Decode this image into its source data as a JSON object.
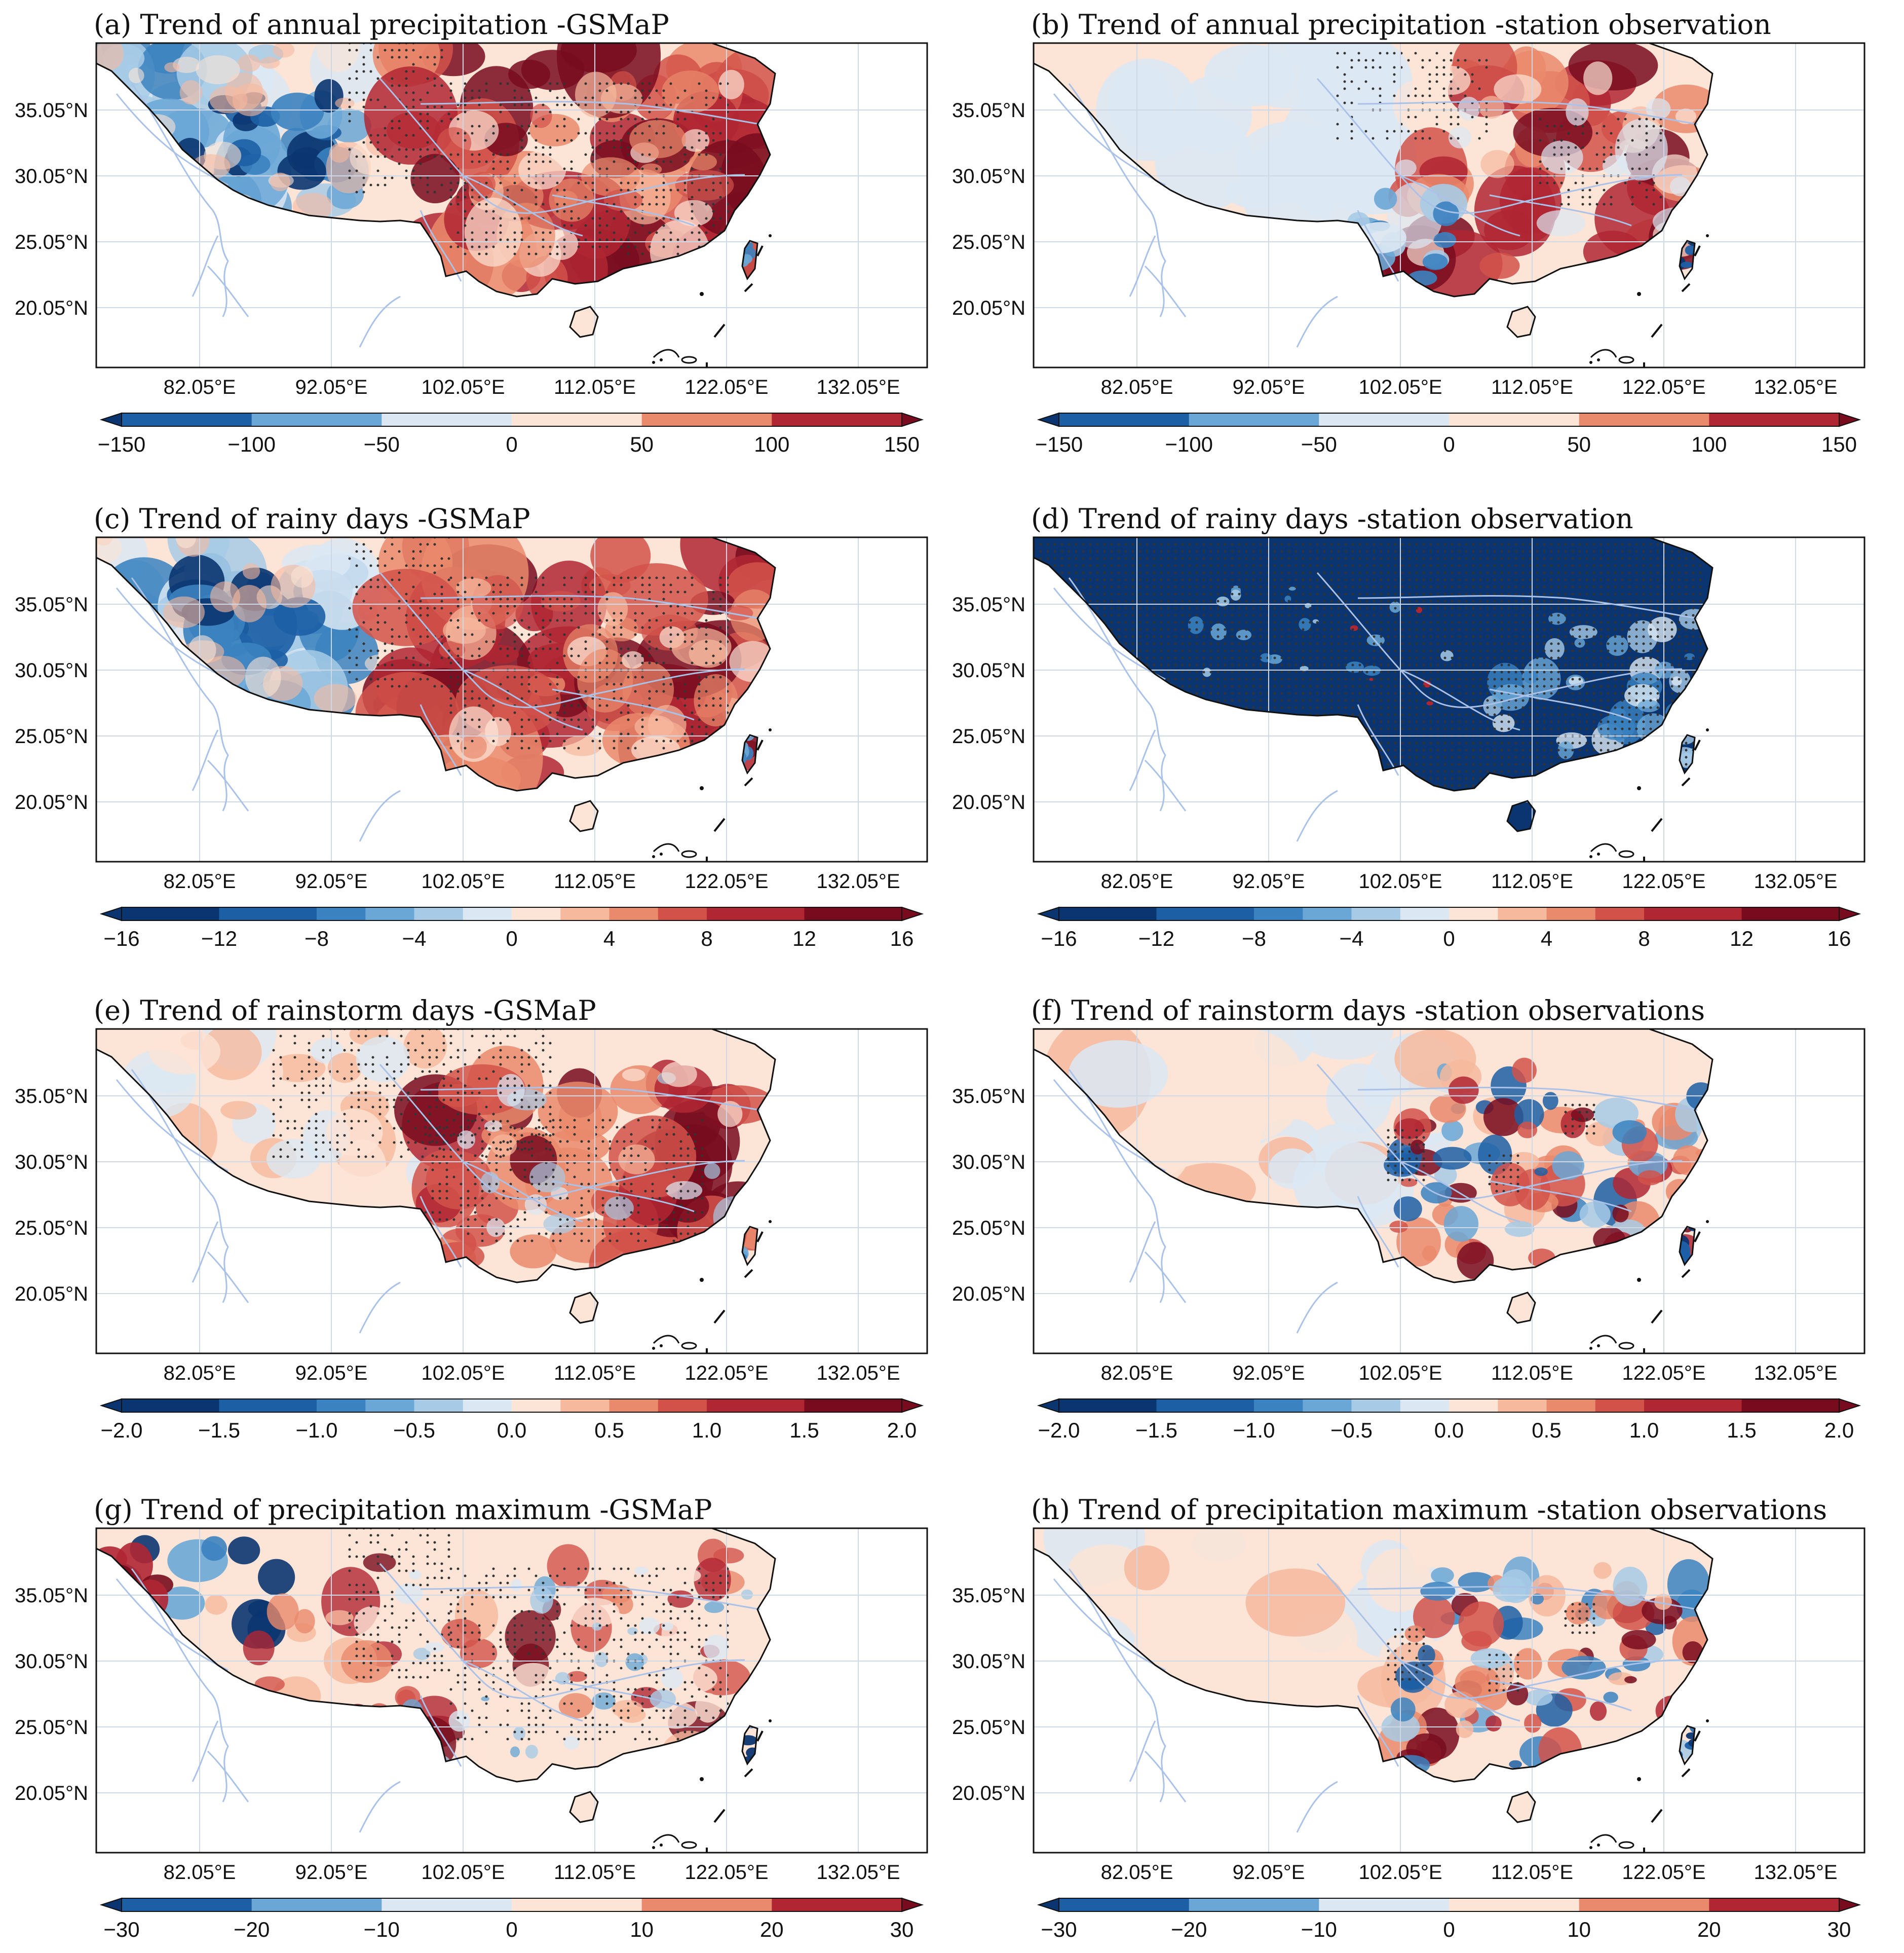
{
  "map_data": {
    "lon_ticks": [
      "82.05°E",
      "92.05°E",
      "102.05°E",
      "112.05°E",
      "122.05°E",
      "132.05°E"
    ],
    "lat_ticks": [
      "35.05°N",
      "30.05°N",
      "25.05°N",
      "20.05°N"
    ],
    "colors": {
      "diverging": [
        "#0b3570",
        "#1d5fa5",
        "#3b82c0",
        "#6aa7d6",
        "#a7cbe6",
        "#dbe8f3",
        "#fce4d6",
        "#f6b99e",
        "#ea8a6c",
        "#d2524a",
        "#b02633",
        "#780c1e"
      ],
      "neutral_land": "#f8f1ec",
      "river": "#aac2e8",
      "grid": "#cfd8e6"
    },
    "panels": [
      {
        "id": "a",
        "title": "(a) Trend of annual precipitation -GSMaP",
        "pattern": "west_blue_east_red",
        "stipple": "north_east",
        "colorbar": {
          "ticks": [
            "−150",
            "−100",
            "−50",
            "0",
            "50",
            "100",
            "150"
          ],
          "min": -150,
          "max": 150
        }
      },
      {
        "id": "b",
        "title": "(b) Trend of annual precipitation -station observation",
        "pattern": "pale_east_red_southwest_blue",
        "stipple": "central",
        "colorbar": {
          "ticks": [
            "−150",
            "−100",
            "−50",
            "0",
            "50",
            "100",
            "150"
          ],
          "min": -150,
          "max": 150
        }
      },
      {
        "id": "c",
        "title": "(c) Trend of rainy days -GSMaP",
        "pattern": "west_blue_east_red",
        "stipple": "north_east",
        "colorbar": {
          "ticks": [
            "−16",
            "−12",
            "−8",
            "−4",
            "0",
            "4",
            "8",
            "12",
            "16"
          ],
          "min": -16,
          "max": 16
        }
      },
      {
        "id": "d",
        "title": "(d) Trend of rainy days -station observation",
        "pattern": "all_deep_blue",
        "stipple": "everywhere",
        "colorbar": {
          "ticks": [
            "−16",
            "−12",
            "−8",
            "−4",
            "0",
            "4",
            "8",
            "12",
            "16"
          ],
          "min": -16,
          "max": 16
        }
      },
      {
        "id": "e",
        "title": "(e) Trend of rainstorm days -GSMaP",
        "pattern": "pale_west_red_east",
        "stipple": "north",
        "colorbar": {
          "ticks": [
            "−2.0",
            "−1.5",
            "−1.0",
            "−0.5",
            "0.0",
            "0.5",
            "1.0",
            "1.5",
            "2.0"
          ],
          "min": -2,
          "max": 2
        }
      },
      {
        "id": "f",
        "title": "(f) Trend of rainstorm days -station observations",
        "pattern": "pale_east_mixed",
        "stipple": "scattered",
        "colorbar": {
          "ticks": [
            "−2.0",
            "−1.5",
            "−1.0",
            "−0.5",
            "0.0",
            "0.5",
            "1.0",
            "1.5",
            "2.0"
          ],
          "min": -2,
          "max": 2
        }
      },
      {
        "id": "g",
        "title": "(g) Trend of precipitation maximum -GSMaP",
        "pattern": "mixed_red",
        "stipple": "north_east",
        "colorbar": {
          "ticks": [
            "−30",
            "−20",
            "−10",
            "0",
            "10",
            "20",
            "30"
          ],
          "min": -30,
          "max": 30
        }
      },
      {
        "id": "h",
        "title": "(h) Trend of precipitation maximum -station observations",
        "pattern": "pale_east_mixed",
        "stipple": "scattered",
        "colorbar": {
          "ticks": [
            "−30",
            "−20",
            "−10",
            "0",
            "10",
            "20",
            "30"
          ],
          "min": -30,
          "max": 30
        }
      }
    ]
  }
}
